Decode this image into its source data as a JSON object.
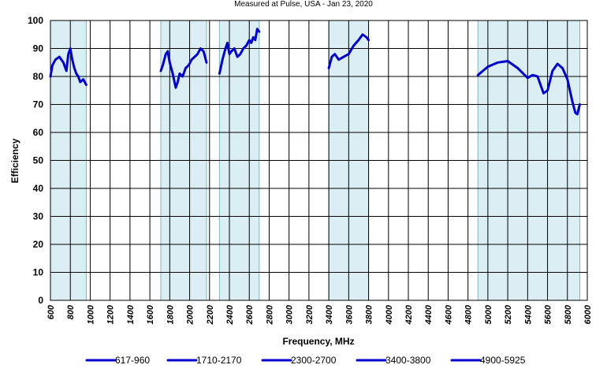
{
  "chart_data": {
    "type": "line",
    "title": "Measured at Pulse,  USA  - Jan 23, 2020",
    "xlabel": "Frequency, MHz",
    "ylabel": "Efficiency",
    "xlim": [
      600,
      6000
    ],
    "ylim": [
      0,
      100
    ],
    "x_ticks": [
      600,
      800,
      1000,
      1200,
      1400,
      1600,
      1800,
      2000,
      2200,
      2400,
      2600,
      2800,
      3000,
      3200,
      3400,
      3600,
      3800,
      4000,
      4200,
      4400,
      4600,
      4800,
      5000,
      5200,
      5400,
      5600,
      5800,
      6000
    ],
    "y_ticks": [
      0,
      10,
      20,
      30,
      40,
      50,
      60,
      70,
      80,
      90,
      100
    ],
    "grid": true,
    "legend_position": "bottom",
    "line_color": "#0000cc",
    "band_fill": "#daeef3",
    "band_edge": "#7fb4c4",
    "bands": [
      [
        600,
        960
      ],
      [
        1710,
        2170
      ],
      [
        2300,
        2700
      ],
      [
        3400,
        3800
      ],
      [
        4900,
        5925
      ]
    ],
    "series": [
      {
        "name": "617-960",
        "x": [
          600,
          620,
          650,
          690,
          730,
          760,
          780,
          800,
          820,
          840,
          860,
          880,
          900,
          930,
          960
        ],
        "y": [
          80,
          84,
          86,
          87,
          85,
          82,
          88,
          90,
          86,
          83,
          81,
          80,
          78,
          79,
          77
        ]
      },
      {
        "name": "1710-2170",
        "x": [
          1710,
          1730,
          1760,
          1780,
          1800,
          1830,
          1860,
          1880,
          1900,
          1930,
          1960,
          1990,
          2020,
          2050,
          2080,
          2110,
          2140,
          2170
        ],
        "y": [
          82,
          84,
          88,
          89,
          85,
          81,
          76,
          78,
          81,
          80,
          83,
          84,
          86,
          87,
          88,
          90,
          89,
          85
        ]
      },
      {
        "name": "2300-2700",
        "x": [
          2300,
          2330,
          2360,
          2380,
          2400,
          2420,
          2450,
          2480,
          2510,
          2540,
          2570,
          2600,
          2620,
          2640,
          2660,
          2680,
          2700
        ],
        "y": [
          81,
          86,
          90,
          92,
          88,
          89,
          90,
          87,
          88,
          90,
          91,
          93,
          92,
          94,
          93,
          97,
          96
        ]
      },
      {
        "name": "3400-3800",
        "x": [
          3400,
          3430,
          3460,
          3500,
          3550,
          3600,
          3650,
          3700,
          3740,
          3780,
          3800
        ],
        "y": [
          83,
          87,
          88,
          86,
          87,
          88,
          91,
          93,
          95,
          94,
          93
        ]
      },
      {
        "name": "4900-5925",
        "x": [
          4900,
          5000,
          5100,
          5200,
          5300,
          5400,
          5450,
          5500,
          5560,
          5600,
          5650,
          5700,
          5750,
          5800,
          5850,
          5880,
          5900,
          5925
        ],
        "y": [
          80.5,
          83.5,
          85,
          85.5,
          83,
          79.5,
          80.5,
          80,
          74,
          75,
          82,
          84.5,
          83,
          79,
          71,
          67,
          66.5,
          70
        ]
      }
    ]
  }
}
